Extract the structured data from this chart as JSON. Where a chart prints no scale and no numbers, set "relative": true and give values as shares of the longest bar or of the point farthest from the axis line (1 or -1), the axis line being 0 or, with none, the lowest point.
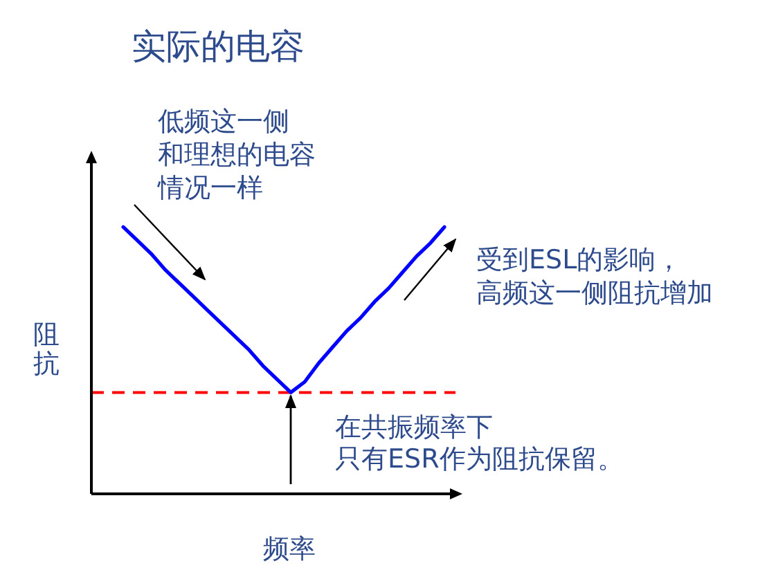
{
  "chart_data": {
    "type": "line",
    "title": "实际的电容",
    "xlabel": "频率",
    "ylabel": "阻抗",
    "annotations": [
      "低频这一侧和理想的电容情况一样",
      "受到ESL的影响，高频这一侧阻抗增加",
      "在共振频率下只有ESR作为阻抗保留。"
    ],
    "categories": [
      null,
      null,
      null,
      null,
      null,
      null,
      null,
      null,
      null,
      null,
      null,
      null,
      null,
      null,
      null,
      null,
      null,
      null,
      null,
      null,
      null,
      null,
      null,
      null
    ],
    "relative": true,
    "series": [
      {
        "color": "#0000ff",
        "values": [
          1.0,
          0.95,
          0.9,
          0.84,
          0.79,
          0.74,
          0.69,
          0.64,
          0.59,
          0.54,
          0.48,
          0.43,
          0.38,
          0.42,
          0.49,
          0.55,
          0.61,
          0.66,
          0.72,
          0.77,
          0.83,
          0.89,
          0.94,
          1.0
        ]
      }
    ],
    "ref_lines": [
      {
        "axis": "y",
        "value": 0.38,
        "color": "#ff0000",
        "line_style": "dashed"
      }
    ]
  }
}
